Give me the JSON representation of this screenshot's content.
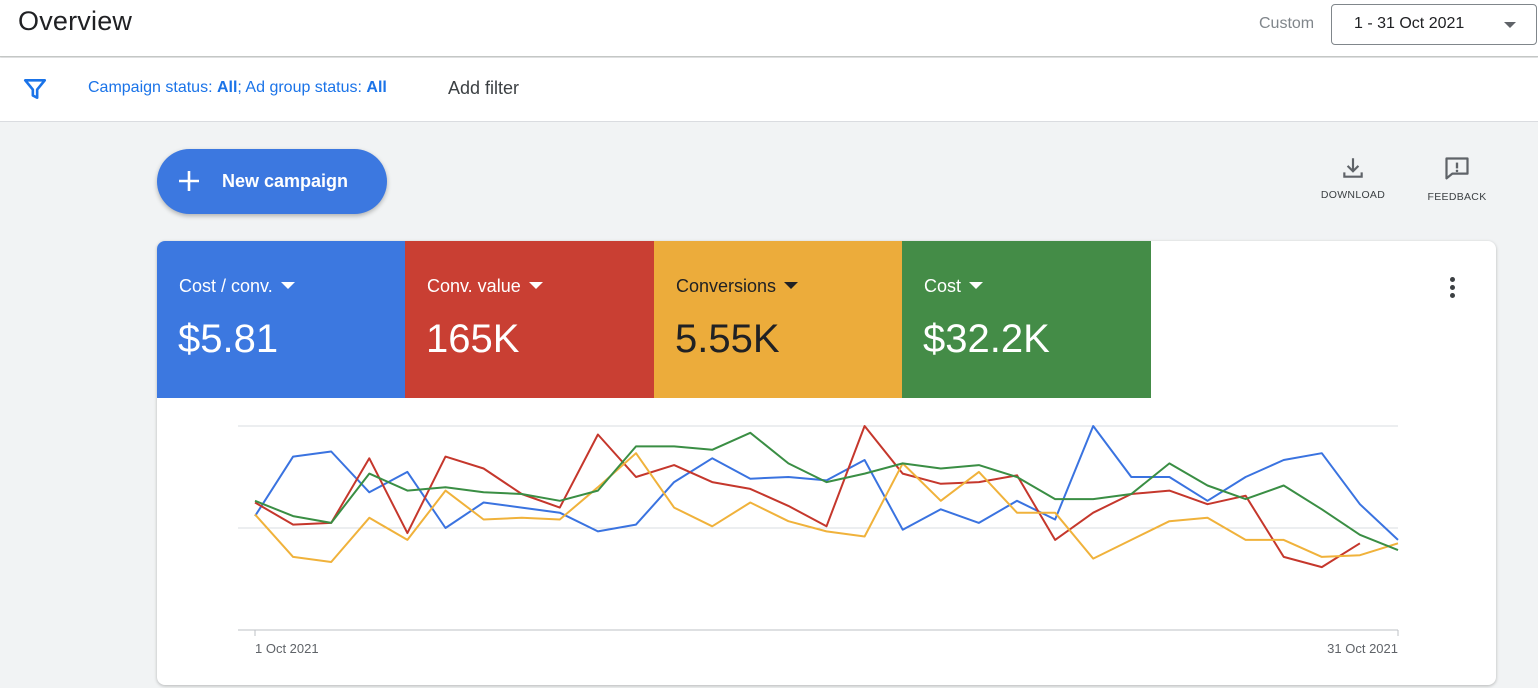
{
  "header": {
    "title": "Overview",
    "range_label": "Custom",
    "date_range": "1 - 31 Oct 2021"
  },
  "filter": {
    "campaign_label": "Campaign status: ",
    "campaign_value": "All",
    "separator": "; ",
    "adgroup_label": "Ad group status: ",
    "adgroup_value": "All",
    "add_filter": "Add filter"
  },
  "actions": {
    "new_campaign": "New campaign",
    "download": "DOWNLOAD",
    "feedback": "FEEDBACK"
  },
  "metrics": [
    {
      "label": "Cost / conv.",
      "value": "$5.81",
      "color": "#3c78e0",
      "text_color": "#ffffff"
    },
    {
      "label": "Conv. value",
      "value": "165K",
      "color": "#c93f33",
      "text_color": "#ffffff"
    },
    {
      "label": "Conversions",
      "value": "5.55K",
      "color": "#ecac3b",
      "text_color": "#202124"
    },
    {
      "label": "Cost",
      "value": "$32.2K",
      "color": "#448c47",
      "text_color": "#ffffff"
    }
  ],
  "chart_data": {
    "type": "line",
    "x_start_label": "1 Oct 2021",
    "x_end_label": "31 Oct 2021",
    "grid": true,
    "ylim": [
      0,
      100
    ],
    "series": [
      {
        "color": "#3a73e0",
        "values": [
          47,
          82,
          85,
          61,
          73,
          40,
          55,
          52,
          49,
          38,
          42,
          67,
          81,
          69,
          70,
          68,
          80,
          39,
          51,
          43,
          56,
          45,
          100,
          70,
          70,
          56,
          70,
          80,
          84,
          54,
          33
        ]
      },
      {
        "color": "#c5372c",
        "values": [
          55,
          42,
          43,
          81,
          37,
          82,
          75,
          60,
          52,
          95,
          70,
          77,
          67,
          63,
          53,
          41,
          100,
          72,
          66,
          67,
          71,
          33,
          49,
          60,
          62,
          54,
          59,
          23,
          17,
          31,
          null
        ]
      },
      {
        "color": "#f0b23b",
        "values": [
          48,
          23,
          20,
          46,
          33,
          62,
          45,
          46,
          45,
          64,
          84,
          52,
          41,
          55,
          44,
          38,
          35,
          78,
          56,
          73,
          49,
          49,
          22,
          33,
          44,
          46,
          33,
          33,
          23,
          24,
          31
        ]
      },
      {
        "color": "#3a8e44",
        "values": [
          56,
          47,
          43,
          72,
          62,
          64,
          61,
          60,
          56,
          62,
          88,
          88,
          86,
          96,
          78,
          67,
          72,
          78,
          75,
          77,
          70,
          57,
          57,
          60,
          78,
          65,
          57,
          65,
          51,
          36,
          27
        ]
      }
    ]
  }
}
